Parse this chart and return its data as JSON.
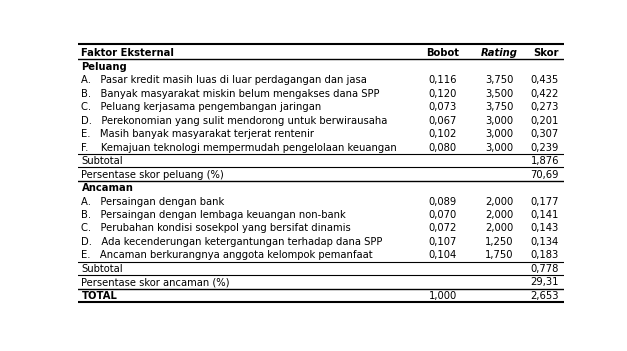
{
  "rows": [
    {
      "type": "section",
      "label": "Peluang",
      "bobot": "",
      "rating": "",
      "skor": ""
    },
    {
      "type": "data",
      "label": "A.   Pasar kredit masih luas di luar perdagangan dan jasa",
      "bobot": "0,116",
      "rating": "3,750",
      "skor": "0,435"
    },
    {
      "type": "data",
      "label": "B.   Banyak masyarakat miskin belum mengakses dana SPP",
      "bobot": "0,120",
      "rating": "3,500",
      "skor": "0,422"
    },
    {
      "type": "data",
      "label": "C.   Peluang kerjasama pengembangan jaringan",
      "bobot": "0,073",
      "rating": "3,750",
      "skor": "0,273"
    },
    {
      "type": "data",
      "label": "D.   Perekonomian yang sulit mendorong untuk berwirausaha",
      "bobot": "0,067",
      "rating": "3,000",
      "skor": "0,201"
    },
    {
      "type": "data",
      "label": "E.   Masih banyak masyarakat terjerat rentenir",
      "bobot": "0,102",
      "rating": "3,000",
      "skor": "0,307"
    },
    {
      "type": "data",
      "label": "F.    Kemajuan teknologi mempermudah pengelolaan keuangan",
      "bobot": "0,080",
      "rating": "3,000",
      "skor": "0,239"
    },
    {
      "type": "subtotal",
      "label": "Subtotal",
      "bobot": "",
      "rating": "",
      "skor": "1,876"
    },
    {
      "type": "persentase",
      "label": "Persentase skor peluang (%)",
      "bobot": "",
      "rating": "",
      "skor": "70,69"
    },
    {
      "type": "section",
      "label": "Ancaman",
      "bobot": "",
      "rating": "",
      "skor": ""
    },
    {
      "type": "data",
      "label": "A.   Persaingan dengan bank",
      "bobot": "0,089",
      "rating": "2,000",
      "skor": "0,177"
    },
    {
      "type": "data",
      "label": "B.   Persaingan dengan lembaga keuangan non-bank",
      "bobot": "0,070",
      "rating": "2,000",
      "skor": "0,141"
    },
    {
      "type": "data",
      "label": "C.   Perubahan kondisi sosekpol yang bersifat dinamis",
      "bobot": "0,072",
      "rating": "2,000",
      "skor": "0,143"
    },
    {
      "type": "data",
      "label": "D.   Ada kecenderungan ketergantungan terhadap dana SPP",
      "bobot": "0,107",
      "rating": "1,250",
      "skor": "0,134"
    },
    {
      "type": "data",
      "label": "E.   Ancaman berkurangnya anggota kelompok pemanfaat",
      "bobot": "0,104",
      "rating": "1,750",
      "skor": "0,183"
    },
    {
      "type": "subtotal",
      "label": "Subtotal",
      "bobot": "",
      "rating": "",
      "skor": "0,778"
    },
    {
      "type": "persentase",
      "label": "Persentase skor ancaman (%)",
      "bobot": "",
      "rating": "",
      "skor": "29,31"
    },
    {
      "type": "total",
      "label": "TOTAL",
      "bobot": "1,000",
      "rating": "",
      "skor": "2,653"
    }
  ],
  "header_label": "Faktor Eksternal",
  "header_bobot": "Bobot",
  "header_rating": "Rating",
  "header_skor": "Skor",
  "font_size": 7.2,
  "font_family": "DejaVu Sans",
  "fig_width": 6.27,
  "fig_height": 3.51,
  "dpi": 100
}
